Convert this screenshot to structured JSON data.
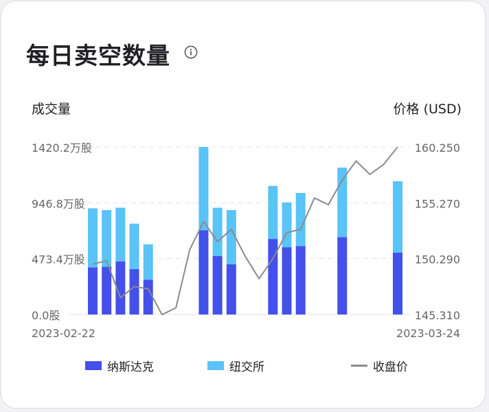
{
  "header": {
    "title": "每日卖空数量",
    "info_icon": "info-circle-icon"
  },
  "chart_data": {
    "type": "bar",
    "stacked": true,
    "left_axis_title": "成交量",
    "right_axis_title": "价格 (USD)",
    "left_ticks": [
      "0.0股",
      "473.4万股",
      "946.8万股",
      "1420.2万股"
    ],
    "right_ticks": [
      "145.310",
      "150.290",
      "155.270",
      "160.250"
    ],
    "ylim_left": [
      0,
      1420.2
    ],
    "ylim_right": [
      145.31,
      160.25
    ],
    "x_start_label": "2023-02-22",
    "x_end_label": "2023-03-24",
    "bars": [
      {
        "slot": 0,
        "nasdaq": 400,
        "nyse": 500
      },
      {
        "slot": 1,
        "nasdaq": 405,
        "nyse": 480
      },
      {
        "slot": 2,
        "nasdaq": 450,
        "nyse": 455
      },
      {
        "slot": 3,
        "nasdaq": 385,
        "nyse": 385
      },
      {
        "slot": 4,
        "nasdaq": 295,
        "nyse": 300
      },
      {
        "slot": 8,
        "nasdaq": 715,
        "nyse": 705
      },
      {
        "slot": 9,
        "nasdaq": 495,
        "nyse": 410
      },
      {
        "slot": 10,
        "nasdaq": 425,
        "nyse": 460
      },
      {
        "slot": 13,
        "nasdaq": 640,
        "nyse": 450
      },
      {
        "slot": 14,
        "nasdaq": 570,
        "nyse": 380
      },
      {
        "slot": 15,
        "nasdaq": 580,
        "nyse": 450
      },
      {
        "slot": 18,
        "nasdaq": 655,
        "nyse": 590
      },
      {
        "slot": 22,
        "nasdaq": 525,
        "nyse": 605
      }
    ],
    "price": [
      [
        0,
        149.8
      ],
      [
        1,
        150.1
      ],
      [
        2,
        146.8
      ],
      [
        3,
        147.8
      ],
      [
        4,
        147.6
      ],
      [
        5,
        145.3
      ],
      [
        6,
        145.9
      ],
      [
        7,
        151.1
      ],
      [
        8,
        153.6
      ],
      [
        9,
        151.8
      ],
      [
        10,
        152.9
      ],
      [
        11,
        150.5
      ],
      [
        12,
        148.5
      ],
      [
        13,
        150.3
      ],
      [
        14,
        152.6
      ],
      [
        15,
        152.9
      ],
      [
        16,
        155.7
      ],
      [
        17,
        155.1
      ],
      [
        18,
        157.3
      ],
      [
        19,
        159.0
      ],
      [
        20,
        157.8
      ],
      [
        21,
        158.7
      ],
      [
        22,
        160.25
      ]
    ],
    "slots": 23,
    "series": [
      {
        "name": "纳斯达克",
        "color": "#4350ea"
      },
      {
        "name": "纽交所",
        "color": "#5ac3f7"
      },
      {
        "name": "收盘价",
        "color": "#8a8a90"
      }
    ],
    "grid": true,
    "legend_position": "bottom"
  }
}
